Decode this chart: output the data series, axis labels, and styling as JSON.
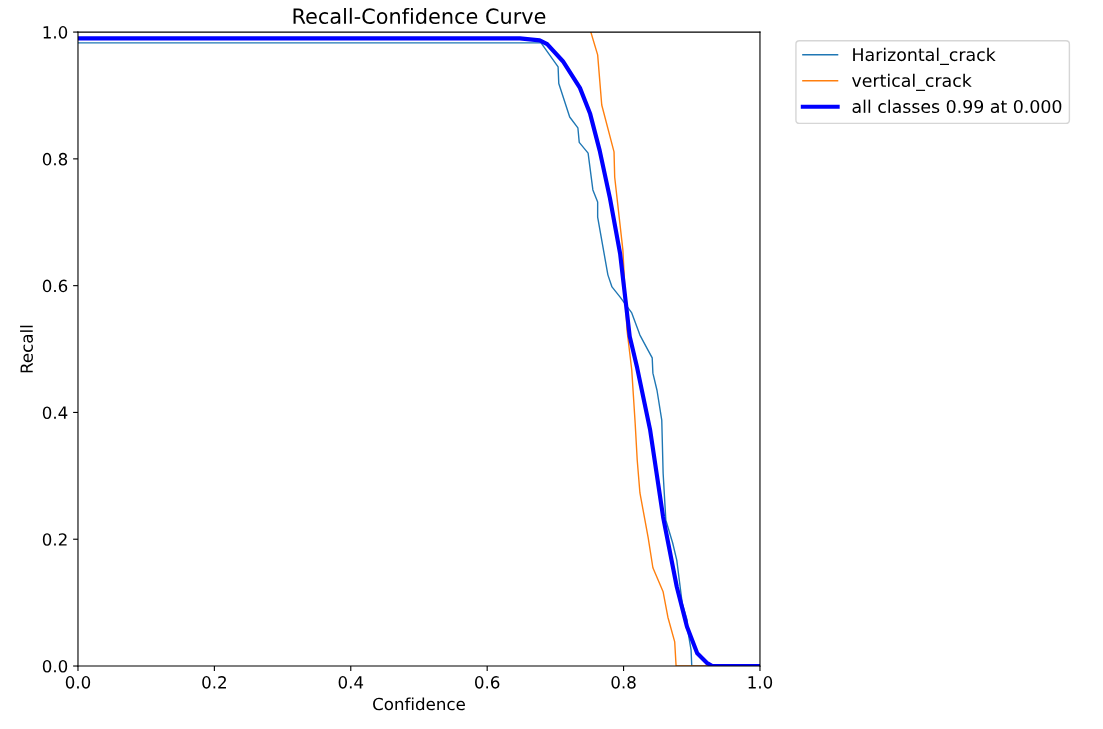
{
  "chart_data": {
    "type": "line",
    "title": "Recall-Confidence Curve",
    "xlabel": "Confidence",
    "ylabel": "Recall",
    "xlim": [
      0.0,
      1.0
    ],
    "ylim": [
      0.0,
      1.0
    ],
    "xticks": [
      {
        "value": 0,
        "label": "0.0"
      },
      0.2,
      0.4,
      0.6,
      0.8,
      {
        "value": 1,
        "label": "1.0"
      }
    ],
    "yticks": [
      {
        "value": 0,
        "label": "0.0"
      },
      0.2,
      0.4,
      0.6,
      0.8,
      {
        "value": 1,
        "label": "1.0"
      }
    ],
    "grid": false,
    "legend": "top right",
    "marker": "none",
    "line_style": "solid",
    "series": [
      {
        "name": "Harizontal_crack",
        "color": "#1f77b4",
        "x": [
          0.0,
          0.679,
          0.704,
          0.705,
          0.721,
          0.733,
          0.735,
          0.748,
          0.755,
          0.762,
          0.762,
          0.777,
          0.783,
          0.795,
          0.812,
          0.824,
          0.836,
          0.842,
          0.843,
          0.849,
          0.856,
          0.858,
          0.862,
          0.872,
          0.878,
          0.886,
          0.893,
          0.894,
          0.899,
          0.9,
          1.0
        ],
        "values": [
          0.983,
          0.983,
          0.945,
          0.919,
          0.866,
          0.849,
          0.826,
          0.809,
          0.751,
          0.732,
          0.708,
          0.617,
          0.598,
          0.582,
          0.557,
          0.522,
          0.498,
          0.486,
          0.462,
          0.435,
          0.388,
          0.304,
          0.23,
          0.194,
          0.167,
          0.099,
          0.073,
          0.057,
          0.025,
          0.0,
          0.0
        ]
      },
      {
        "name": "vertical_crack",
        "color": "#ff7f0e",
        "x": [
          0.752,
          0.762,
          0.768,
          0.786,
          0.787,
          0.799,
          0.805,
          0.812,
          0.817,
          0.82,
          0.824,
          0.836,
          0.843,
          0.858,
          0.865,
          0.875,
          0.877,
          1.0
        ],
        "values": [
          1.0,
          0.964,
          0.885,
          0.811,
          0.771,
          0.656,
          0.53,
          0.467,
          0.383,
          0.325,
          0.273,
          0.203,
          0.155,
          0.117,
          0.077,
          0.038,
          0.0,
          0.0
        ]
      },
      {
        "name": "all classes 0.99 at 0.000",
        "color": "#0000ff",
        "x": [
          0.0,
          0.648,
          0.677,
          0.688,
          0.711,
          0.736,
          0.751,
          0.765,
          0.78,
          0.795,
          0.809,
          0.82,
          0.839,
          0.858,
          0.878,
          0.893,
          0.908,
          0.922,
          0.93,
          1.0
        ],
        "values": [
          0.99,
          0.99,
          0.987,
          0.981,
          0.954,
          0.912,
          0.871,
          0.813,
          0.738,
          0.65,
          0.52,
          0.47,
          0.372,
          0.235,
          0.125,
          0.062,
          0.02,
          0.005,
          0.0,
          0.0
        ]
      }
    ]
  }
}
